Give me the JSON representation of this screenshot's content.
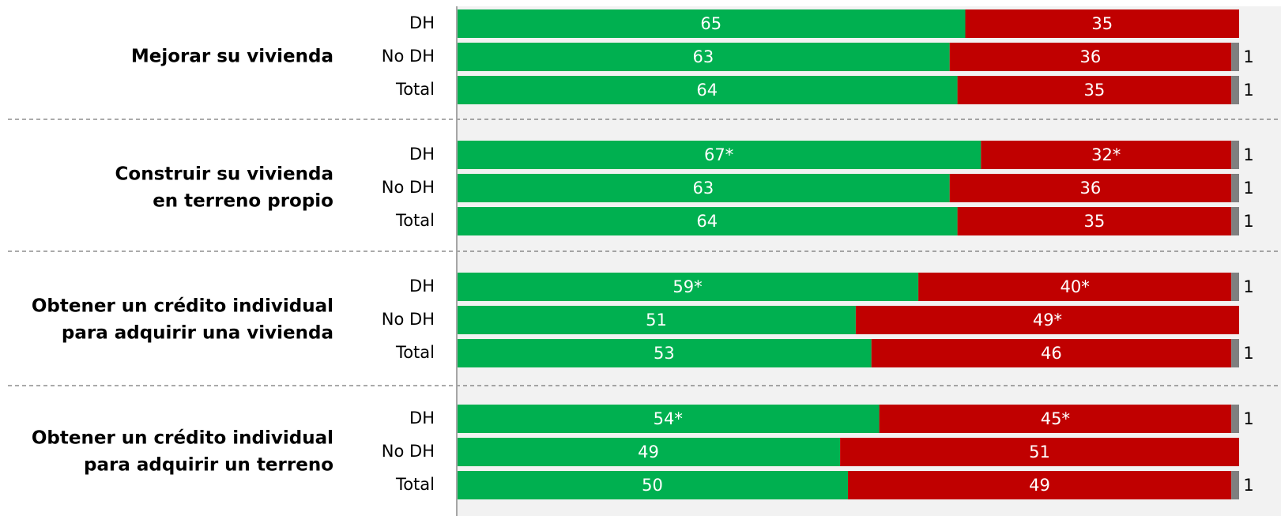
{
  "chart_data": {
    "type": "stacked-bar-horizontal",
    "categories": [
      "DH",
      "No DH",
      "Total",
      "DH",
      "No DH",
      "Total",
      "DH",
      "No DH",
      "Total",
      "DH",
      "No DH",
      "Total"
    ],
    "groups": [
      {
        "label": [
          "Mejorar su vivienda"
        ]
      },
      {
        "label": [
          "Construir su vivienda",
          "en terreno propio"
        ]
      },
      {
        "label": [
          "Obtener un crédito individual",
          "para adquirir una vivienda"
        ]
      },
      {
        "label": [
          "Obtener un crédito individual",
          "para adquirir un terreno"
        ]
      }
    ],
    "xlim": [
      0,
      100
    ],
    "series": [
      {
        "color": "#00b050",
        "label_color": "#ffffff",
        "values": [
          65,
          63,
          64,
          67,
          63,
          64,
          59,
          51,
          53,
          54,
          49,
          50
        ],
        "value_labels": [
          "65",
          "63",
          "64",
          "67*",
          "63",
          "64",
          "59*",
          "51",
          "53",
          "54*",
          "49",
          "50"
        ]
      },
      {
        "color": "#c00000",
        "label_color": "#ffffff",
        "values": [
          35,
          36,
          35,
          32,
          36,
          35,
          40,
          49,
          46,
          45,
          51,
          49
        ],
        "value_labels": [
          "35",
          "36",
          "35",
          "32*",
          "36",
          "35",
          "40*",
          "49*",
          "46",
          "45*",
          "51",
          "49"
        ]
      },
      {
        "color": "#7f7f7f",
        "label_color": "#000000",
        "values": [
          null,
          1,
          1,
          1,
          1,
          1,
          1,
          null,
          1,
          1,
          null,
          1
        ]
      }
    ]
  }
}
